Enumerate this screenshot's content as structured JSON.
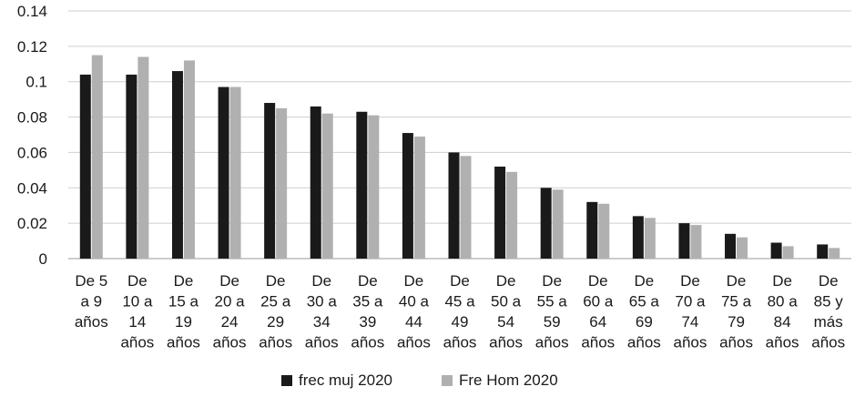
{
  "chart_data": {
    "type": "bar",
    "categories": [
      [
        "De 5",
        "a 9",
        "años"
      ],
      [
        "De",
        "10 a",
        "14",
        "años"
      ],
      [
        "De",
        "15 a",
        "19",
        "años"
      ],
      [
        "De",
        "20 a",
        "24",
        "años"
      ],
      [
        "De",
        "25 a",
        "29",
        "años"
      ],
      [
        "De",
        "30 a",
        "34",
        "años"
      ],
      [
        "De",
        "35 a",
        "39",
        "años"
      ],
      [
        "De",
        "40 a",
        "44",
        "años"
      ],
      [
        "De",
        "45 a",
        "49",
        "años"
      ],
      [
        "De",
        "50 a",
        "54",
        "años"
      ],
      [
        "De",
        "55 a",
        "59",
        "años"
      ],
      [
        "De",
        "60 a",
        "64",
        "años"
      ],
      [
        "De",
        "65 a",
        "69",
        "años"
      ],
      [
        "De",
        "70 a",
        "74",
        "años"
      ],
      [
        "De",
        "75 a",
        "79",
        "años"
      ],
      [
        "De",
        "80 a",
        "84",
        "años"
      ],
      [
        "De",
        "85 y",
        "más",
        "años"
      ]
    ],
    "series": [
      {
        "name": "frec muj 2020",
        "color": "#1a1a1a",
        "values": [
          0.104,
          0.104,
          0.106,
          0.097,
          0.088,
          0.086,
          0.083,
          0.071,
          0.06,
          0.052,
          0.04,
          0.032,
          0.024,
          0.02,
          0.014,
          0.009,
          0.008
        ]
      },
      {
        "name": "Fre Hom 2020",
        "color": "#b0b0b0",
        "values": [
          0.115,
          0.114,
          0.112,
          0.097,
          0.085,
          0.082,
          0.081,
          0.069,
          0.058,
          0.049,
          0.039,
          0.031,
          0.023,
          0.019,
          0.012,
          0.007,
          0.006
        ]
      }
    ],
    "y_ticks": [
      "0",
      "0.02",
      "0.04",
      "0.06",
      "0.08",
      "0.1",
      "0.12",
      "0.14"
    ],
    "ylim": [
      0,
      0.14
    ],
    "grid": true,
    "legend_position": "bottom",
    "title": "",
    "xlabel": "",
    "ylabel": ""
  }
}
